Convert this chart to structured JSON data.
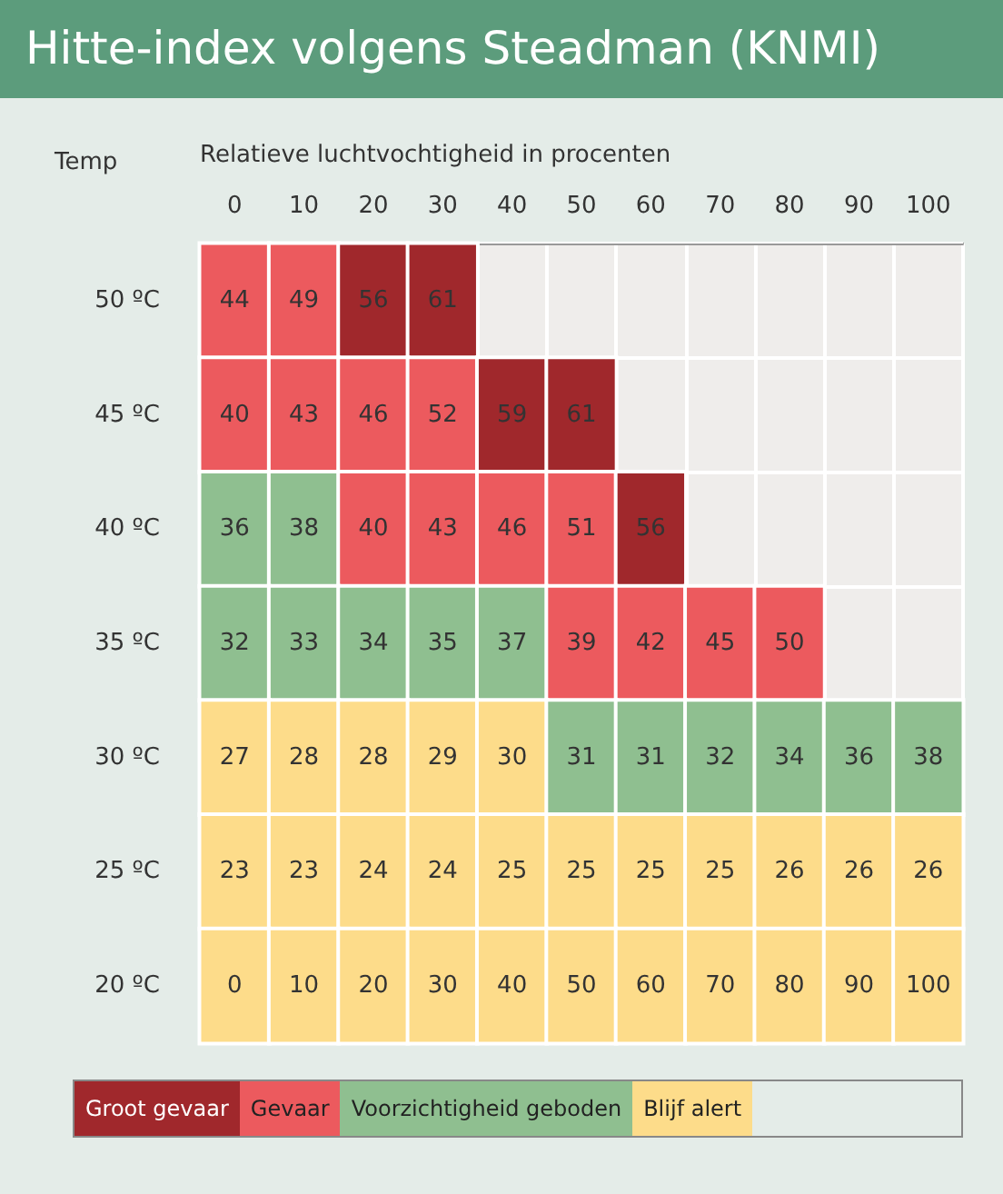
{
  "chart_data": {
    "type": "heatmap",
    "title": "Hitte-index volgens Steadman (KNMI)",
    "xlabel": "Relatieve luchtvochtigheid in procenten",
    "ylabel": "Temp",
    "categories": [
      "0",
      "10",
      "20",
      "30",
      "40",
      "50",
      "60",
      "70",
      "80",
      "90",
      "100"
    ],
    "y_categories": [
      "50 ºC",
      "45 ºC",
      "40 ºC",
      "35 ºC",
      "30 ºC",
      "25 ºC",
      "20 ºC"
    ],
    "cells": [
      [
        44,
        49,
        56,
        61,
        null,
        null,
        null,
        null,
        null,
        null,
        null
      ],
      [
        40,
        43,
        46,
        52,
        59,
        61,
        null,
        null,
        null,
        null,
        null
      ],
      [
        36,
        38,
        40,
        43,
        46,
        51,
        56,
        null,
        null,
        null,
        null
      ],
      [
        32,
        33,
        34,
        35,
        37,
        39,
        42,
        45,
        50,
        null,
        null
      ],
      [
        27,
        28,
        28,
        29,
        30,
        31,
        31,
        32,
        34,
        36,
        38
      ],
      [
        23,
        23,
        24,
        24,
        25,
        25,
        25,
        25,
        26,
        26,
        26
      ],
      [
        0,
        10,
        20,
        30,
        40,
        50,
        60,
        70,
        80,
        90,
        100
      ]
    ],
    "colors": [
      [
        "#ec5a5e",
        "#ec5a5e",
        "#a0282c",
        "#a0282c",
        null,
        null,
        null,
        null,
        null,
        null,
        null
      ],
      [
        "#ec5a5e",
        "#ec5a5e",
        "#ec5a5e",
        "#ec5a5e",
        "#a0282c",
        "#a0282c",
        null,
        null,
        null,
        null,
        null
      ],
      [
        "#8fbf90",
        "#8fbf90",
        "#ec5a5e",
        "#ec5a5e",
        "#ec5a5e",
        "#ec5a5e",
        "#a0282c",
        null,
        null,
        null,
        null
      ],
      [
        "#8fbf90",
        "#8fbf90",
        "#8fbf90",
        "#8fbf90",
        "#8fbf90",
        "#ec5a5e",
        "#ec5a5e",
        "#ec5a5e",
        "#ec5a5e",
        null,
        null
      ],
      [
        "#fddc8a",
        "#fddc8a",
        "#fddc8a",
        "#fddc8a",
        "#fddc8a",
        "#8fbf90",
        "#8fbf90",
        "#8fbf90",
        "#8fbf90",
        "#8fbf90",
        "#8fbf90"
      ],
      [
        "#fddc8a",
        "#fddc8a",
        "#fddc8a",
        "#fddc8a",
        "#fddc8a",
        "#fddc8a",
        "#fddc8a",
        "#fddc8a",
        "#fddc8a",
        "#fddc8a",
        "#fddc8a"
      ],
      [
        "#fddc8a",
        "#fddc8a",
        "#fddc8a",
        "#fddc8a",
        "#fddc8a",
        "#fddc8a",
        "#fddc8a",
        "#fddc8a",
        "#fddc8a",
        "#fddc8a",
        "#fddc8a"
      ]
    ],
    "data_labels": true,
    "annotations": [
      "Groot gevaar",
      "Gevaar",
      "Voorzichtigheid geboden",
      "Blijf alert"
    ]
  }
}
